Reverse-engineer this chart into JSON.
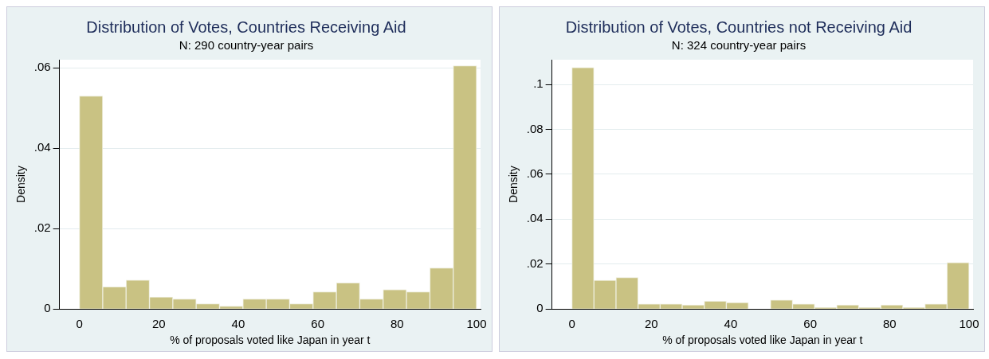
{
  "chart_data": [
    {
      "type": "histogram",
      "title": "Distribution of Votes, Countries Receiving Aid",
      "subtitle": "N: 290 country-year pairs",
      "xlabel": "% of proposals voted like Japan in year t",
      "ylabel": "Density",
      "color": "#c9c283",
      "bins": [
        0,
        5.88,
        11.76,
        17.65,
        23.53,
        29.41,
        35.29,
        41.18,
        47.06,
        52.94,
        58.82,
        64.71,
        70.59,
        76.47,
        82.35,
        88.24,
        94.12,
        100
      ],
      "values": [
        0.053,
        0.0055,
        0.0072,
        0.003,
        0.0025,
        0.0013,
        0.0007,
        0.0025,
        0.0025,
        0.0013,
        0.0043,
        0.0065,
        0.0025,
        0.0048,
        0.0043,
        0.0102,
        0.0605
      ],
      "xlim": [
        -5,
        101
      ],
      "xticks": [
        0,
        20,
        40,
        60,
        80,
        100
      ],
      "ylim": [
        0,
        0.062
      ],
      "yticks": [
        0,
        {
          "value": 0.02,
          "label": ".02"
        },
        {
          "value": 0.04,
          "label": ".04"
        },
        {
          "value": 0.06,
          "label": ".06"
        }
      ],
      "grid": "y"
    },
    {
      "type": "histogram",
      "title": "Distribution of Votes, Countries not Receiving Aid",
      "subtitle": "N: 324 country-year pairs",
      "xlabel": "% of proposals voted like Japan in year t",
      "ylabel": "Density",
      "color": "#c9c283",
      "bins": [
        0,
        5.56,
        11.11,
        16.67,
        22.22,
        27.78,
        33.33,
        38.89,
        44.44,
        50,
        55.56,
        61.11,
        66.67,
        72.22,
        77.78,
        83.33,
        88.89,
        94.44,
        100
      ],
      "values": [
        0.1075,
        0.0128,
        0.014,
        0.0023,
        0.0023,
        0.0018,
        0.0035,
        0.0029,
        0,
        0.004,
        0.0023,
        0.0007,
        0.0018,
        0.0007,
        0.0018,
        0.0007,
        0.0023,
        0.0207
      ],
      "xlim": [
        -5,
        101
      ],
      "xticks": [
        0,
        20,
        40,
        60,
        80,
        100
      ],
      "ylim": [
        0,
        0.111
      ],
      "yticks": [
        0,
        {
          "value": 0.02,
          "label": ".02"
        },
        {
          "value": 0.04,
          "label": ".04"
        },
        {
          "value": 0.06,
          "label": ".06"
        },
        {
          "value": 0.08,
          "label": ".08"
        },
        {
          "value": 0.1,
          "label": ".1"
        }
      ],
      "grid": "y"
    }
  ]
}
